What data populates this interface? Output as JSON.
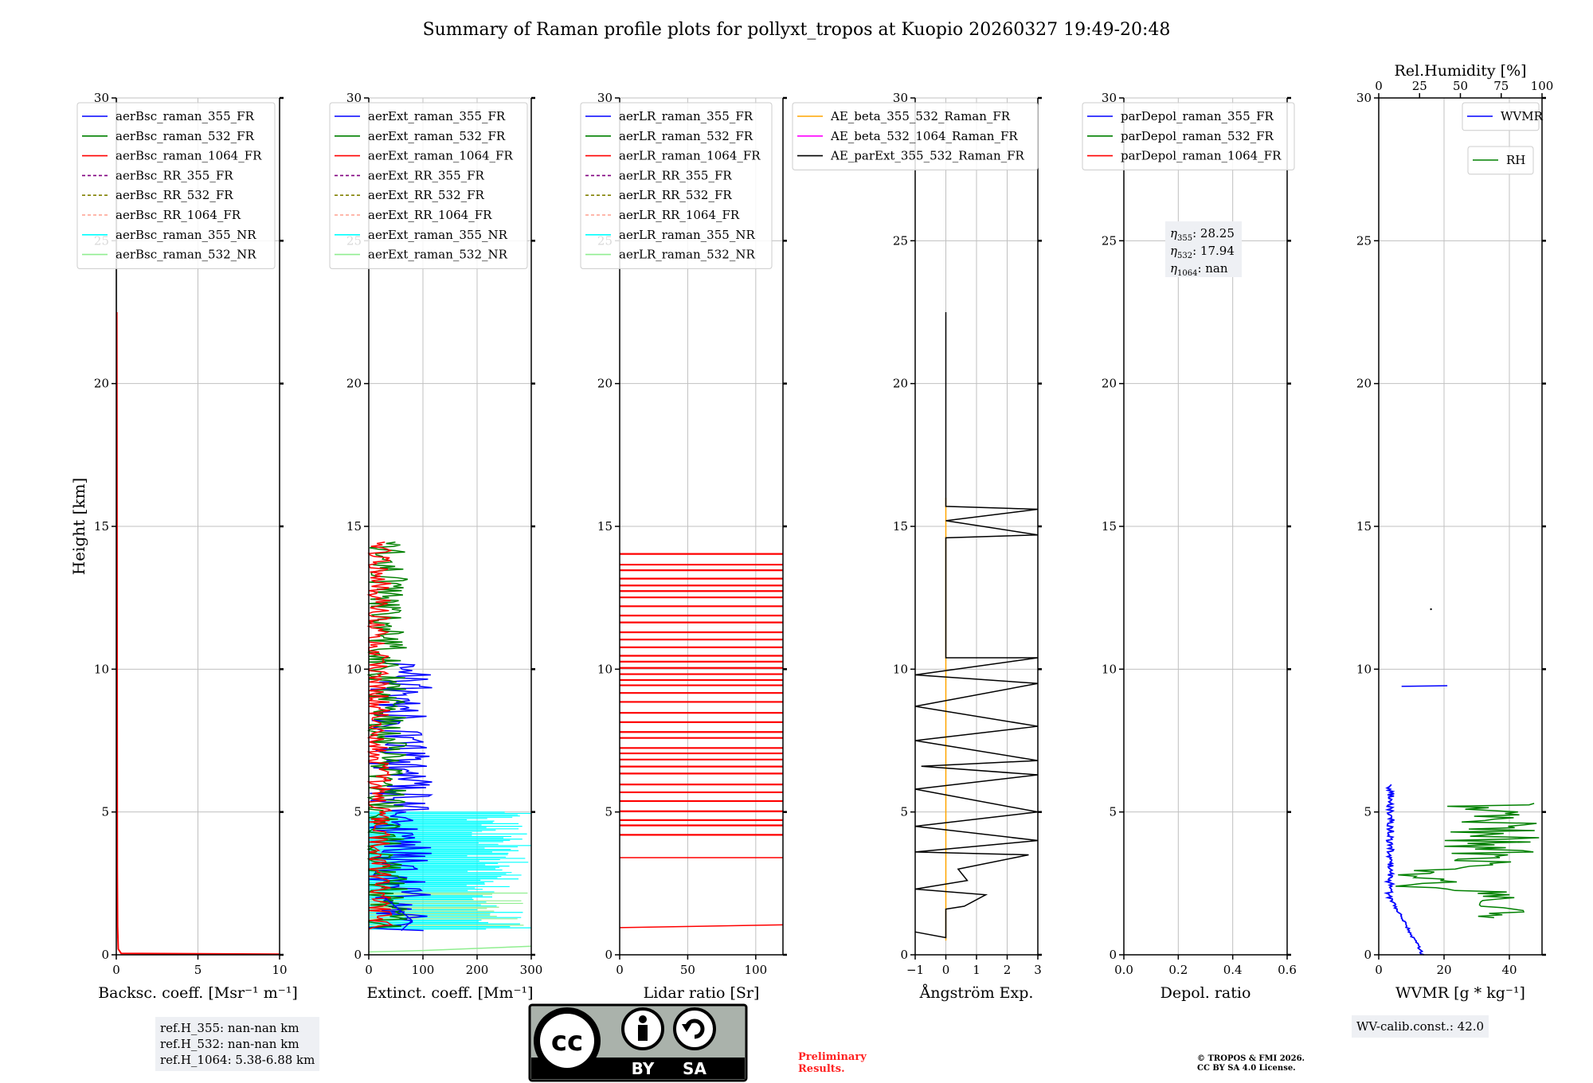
{
  "title": "Summary of Raman profile plots for pollyxt_tropos at Kuopio 20260327 19:49-20:48",
  "colors": {
    "blue": "#0000ff",
    "green": "#008000",
    "red": "#ff0000",
    "purple": "#800080",
    "olive": "#808000",
    "salmon": "#ff9f8f",
    "cyan": "#00ffff",
    "lightgreen": "#90ee90",
    "orange": "#ffa500",
    "magenta": "#ff00ff",
    "black": "#000000"
  },
  "ylabel": "Height [km]",
  "shared_y": {
    "range": [
      0,
      30
    ],
    "ticks": [
      "0",
      "5",
      "10",
      "15",
      "20",
      "25",
      "30"
    ]
  },
  "chart_data": [
    {
      "id": "bsc",
      "type": "line",
      "xlabel": "Backsc. coeff. [Msr⁻¹ m⁻¹]",
      "xlim": [
        0,
        10
      ],
      "xticks": [
        "0",
        "5",
        "10"
      ],
      "legend": [
        [
          "aerBsc_raman_355_FR",
          "blue",
          "solid"
        ],
        [
          "aerBsc_raman_532_FR",
          "green",
          "solid"
        ],
        [
          "aerBsc_raman_1064_FR",
          "red",
          "solid"
        ],
        [
          "aerBsc_RR_355_FR",
          "purple",
          "dashed"
        ],
        [
          "aerBsc_RR_532_FR",
          "olive",
          "dashed"
        ],
        [
          "aerBsc_RR_1064_FR",
          "salmon",
          "dashed"
        ],
        [
          "aerBsc_raman_355_NR",
          "cyan",
          "solid"
        ],
        [
          "aerBsc_raman_532_NR",
          "lightgreen",
          "solid"
        ]
      ],
      "legend_pos": "top-left",
      "series": [
        {
          "name": "aerBsc_raman_1064_FR",
          "color": "red",
          "points": [
            [
              10,
              0.02
            ],
            [
              0.3,
              0.05
            ],
            [
              0.12,
              0.2
            ],
            [
              0.08,
              1
            ],
            [
              0.06,
              3
            ],
            [
              0.05,
              10
            ],
            [
              0.04,
              18
            ],
            [
              0.03,
              22.5
            ]
          ]
        },
        {
          "name": "aerBsc_raman_355_FR",
          "color": "#999999",
          "points": [
            [
              0.02,
              22.5
            ],
            [
              0.02,
              30
            ]
          ]
        }
      ]
    },
    {
      "id": "ext",
      "type": "line",
      "xlabel": "Extinct. coeff. [Mm⁻¹]",
      "xlim": [
        0,
        300
      ],
      "xticks": [
        "0",
        "100",
        "200",
        "300"
      ],
      "legend": [
        [
          "aerExt_raman_355_FR",
          "blue",
          "solid"
        ],
        [
          "aerExt_raman_532_FR",
          "green",
          "solid"
        ],
        [
          "aerExt_raman_1064_FR",
          "red",
          "solid"
        ],
        [
          "aerExt_RR_355_FR",
          "purple",
          "dashed"
        ],
        [
          "aerExt_RR_532_FR",
          "olive",
          "dashed"
        ],
        [
          "aerExt_RR_1064_FR",
          "salmon",
          "dashed"
        ],
        [
          "aerExt_raman_355_NR",
          "cyan",
          "solid"
        ],
        [
          "aerExt_raman_532_NR",
          "lightgreen",
          "solid"
        ]
      ],
      "legend_pos": "top-left"
    },
    {
      "id": "lr",
      "type": "line",
      "xlabel": "Lidar ratio [Sr]",
      "xlim": [
        0,
        120
      ],
      "xticks": [
        "0",
        "50",
        "100"
      ],
      "legend": [
        [
          "aerLR_raman_355_FR",
          "blue",
          "solid"
        ],
        [
          "aerLR_raman_532_FR",
          "green",
          "solid"
        ],
        [
          "aerLR_raman_1064_FR",
          "red",
          "solid"
        ],
        [
          "aerLR_RR_355_FR",
          "purple",
          "dashed"
        ],
        [
          "aerLR_RR_532_FR",
          "olive",
          "dashed"
        ],
        [
          "aerLR_RR_1064_FR",
          "salmon",
          "dashed"
        ],
        [
          "aerLR_raman_355_NR",
          "cyan",
          "solid"
        ],
        [
          "aerLR_raman_532_NR",
          "lightgreen",
          "solid"
        ]
      ],
      "legend_pos": "top-left"
    },
    {
      "id": "ae",
      "type": "line",
      "xlabel": "Ångström Exp.",
      "xlim": [
        -1,
        3
      ],
      "xticks": [
        "−1",
        "0",
        "1",
        "2",
        "3"
      ],
      "legend": [
        [
          "AE_beta_355_532_Raman_FR",
          "orange",
          "solid"
        ],
        [
          "AE_beta_532_1064_Raman_FR",
          "magenta",
          "solid"
        ],
        [
          "AE_parExt_355_532_Raman_FR",
          "black",
          "solid"
        ]
      ],
      "legend_pos": "top-left"
    },
    {
      "id": "dep",
      "type": "line",
      "xlabel": "Depol. ratio",
      "xlim": [
        0,
        0.6
      ],
      "xticks": [
        "0.0",
        "0.2",
        "0.4",
        "0.6"
      ],
      "legend": [
        [
          "parDepol_raman_355_FR",
          "blue",
          "solid"
        ],
        [
          "parDepol_raman_532_FR",
          "green",
          "solid"
        ],
        [
          "parDepol_raman_1064_FR",
          "red",
          "solid"
        ]
      ],
      "legend_pos": "top-left",
      "eta": [
        "28.25",
        "17.94",
        "nan"
      ]
    },
    {
      "id": "wv",
      "type": "line",
      "xlabel": "WVMR [g * kg⁻¹]",
      "xlim": [
        0,
        50
      ],
      "xticks": [
        "0",
        "20",
        "40"
      ],
      "top_label": "Rel.Humidity [%]",
      "top_xlim": [
        0,
        100
      ],
      "top_xticks": [
        "0",
        "25",
        "50",
        "75",
        "100"
      ],
      "legend": [
        [
          "WVMR",
          "blue",
          "solid"
        ]
      ],
      "legend2": [
        [
          "RH",
          "green",
          "solid"
        ]
      ],
      "legend_pos": "top-right"
    }
  ],
  "ref_h": [
    "ref.H_355: nan-nan km",
    "ref.H_532: nan-nan km",
    "ref.H_1064: 5.38-6.88 km"
  ],
  "license": {
    "cc": "cc",
    "by": "BY",
    "sa": "SA"
  },
  "preliminary": [
    "Preliminary",
    "Results."
  ],
  "copyright": [
    "© TROPOS & FMI 2026.",
    "CC BY SA 4.0 License."
  ],
  "wv_calib": "WV-calib.const.: 42.0"
}
